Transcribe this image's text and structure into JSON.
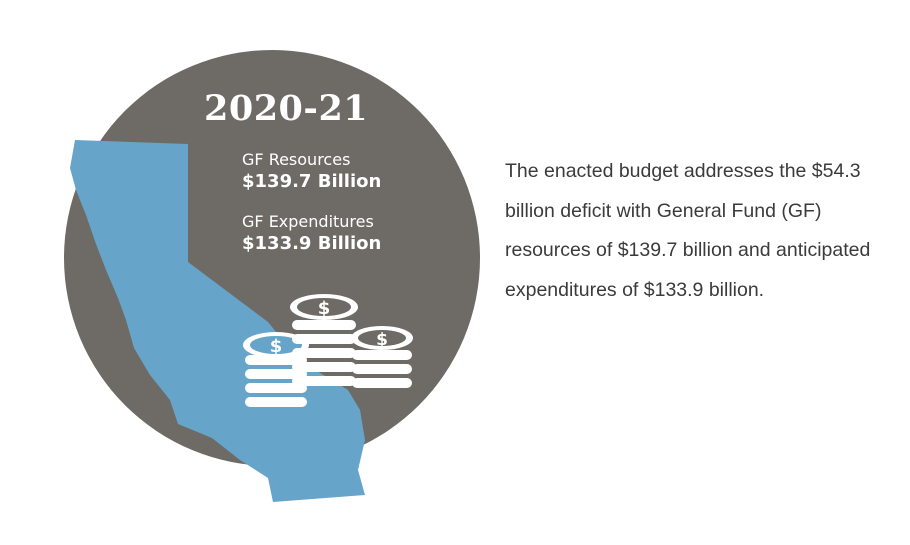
{
  "infographic": {
    "year": "2020-21",
    "resources": {
      "label": "GF Resources",
      "value": "$139.7 Billion"
    },
    "expenditures": {
      "label": "GF Expenditures",
      "value": "$133.9 Billion"
    },
    "coin_symbol": "$",
    "colors": {
      "circle": "#6e6b66",
      "state_map": "#66a5c9",
      "coins": "#ffffff",
      "text": "#3b3b3b"
    }
  },
  "summary": {
    "text": "The enacted budget addresses the $54.3 billion deficit with General Fund (GF) resources of $139.7 billion and anticipated expenditures of $133.9 billion."
  }
}
